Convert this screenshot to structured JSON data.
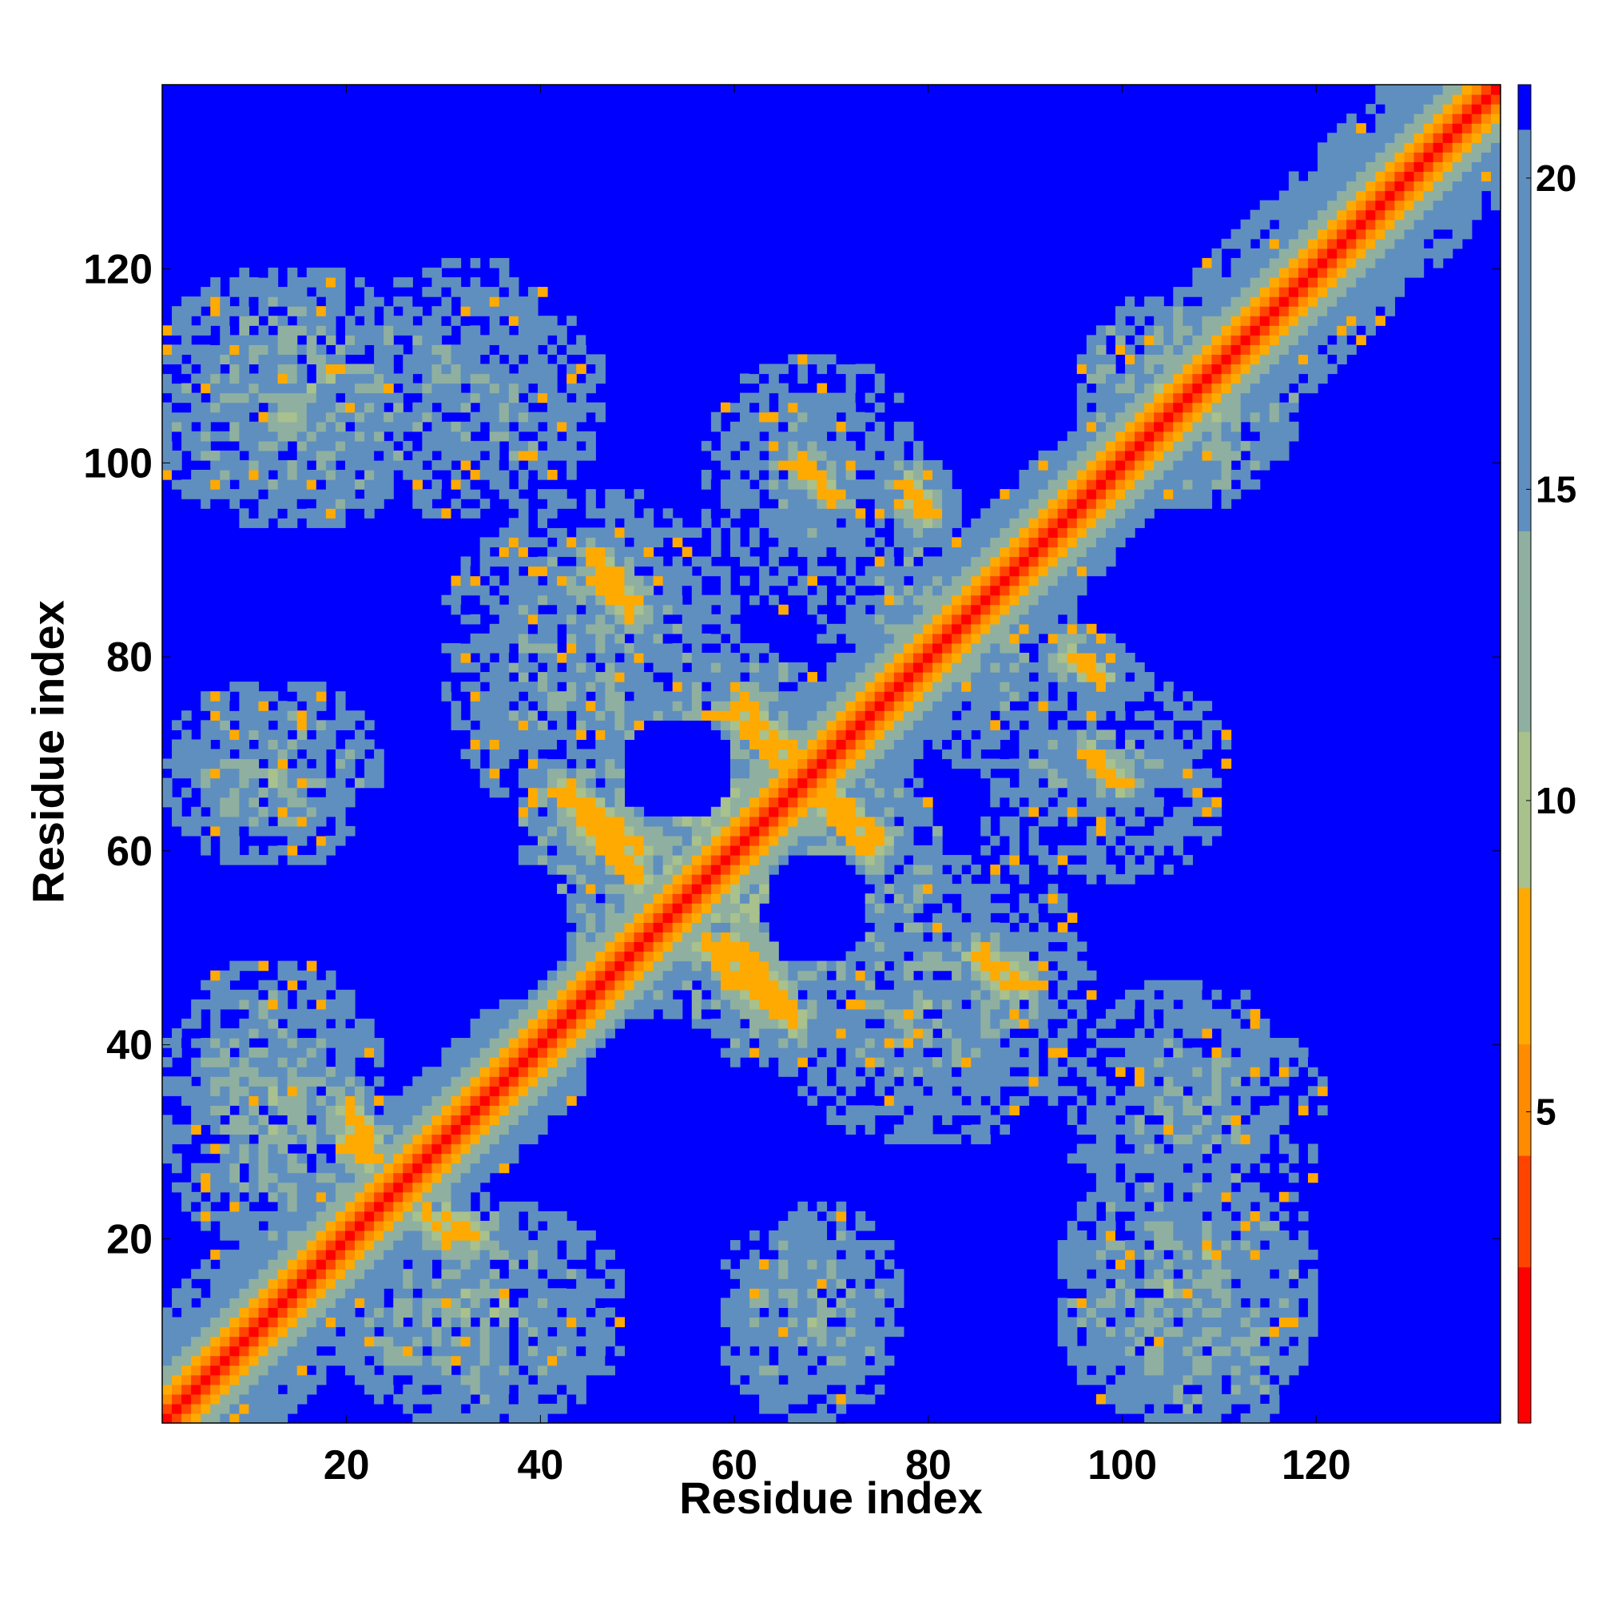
{
  "chart_data": {
    "type": "heatmap",
    "title": "",
    "xlabel": "Residue index",
    "ylabel": "Residue index",
    "xlim": [
      1,
      139
    ],
    "ylim": [
      1,
      139
    ],
    "n_residues": 139,
    "x_ticks": [
      20,
      40,
      60,
      80,
      100,
      120
    ],
    "y_ticks": [
      20,
      40,
      60,
      80,
      100,
      120
    ],
    "colorbar": {
      "ticks": [
        5,
        10,
        15,
        20
      ],
      "range": [
        0,
        21.5
      ],
      "colormap": "red-orange-yellowgreen-steelblue-blue",
      "colors": [
        "#ff0000",
        "#ff4400",
        "#ff8c00",
        "#ffaa00",
        "#a9c18c",
        "#8fb0a0",
        "#5f8fbf",
        "#0000ff"
      ]
    },
    "grid": false,
    "legend": "colorbar-right",
    "cell_values_note_free": true,
    "features": {
      "main_diagonal": "distance ~0-4 along i=j, band widens near residues 1-30",
      "contact_blocks": [
        {
          "x": [
            1,
            30
          ],
          "y": [
            95,
            120
          ]
        },
        {
          "x": [
            20,
            45
          ],
          "y": [
            1,
            25
          ]
        },
        {
          "x": [
            95,
            120
          ],
          "y": [
            1,
            30
          ]
        },
        {
          "x": [
            60,
            80
          ],
          "y": [
            45,
            75
          ]
        },
        {
          "x": [
            95,
            120
          ],
          "y": [
            95,
            120
          ]
        }
      ],
      "anti_diagonals": [
        {
          "from": [
            42,
            65
          ],
          "to": [
            50,
            57
          ]
        },
        {
          "from": [
            60,
            75
          ],
          "to": [
            68,
            68
          ]
        },
        {
          "from": [
            60,
            50
          ],
          "to": [
            66,
            43
          ]
        },
        {
          "from": [
            68,
            66
          ],
          "to": [
            74,
            60
          ]
        }
      ]
    }
  }
}
